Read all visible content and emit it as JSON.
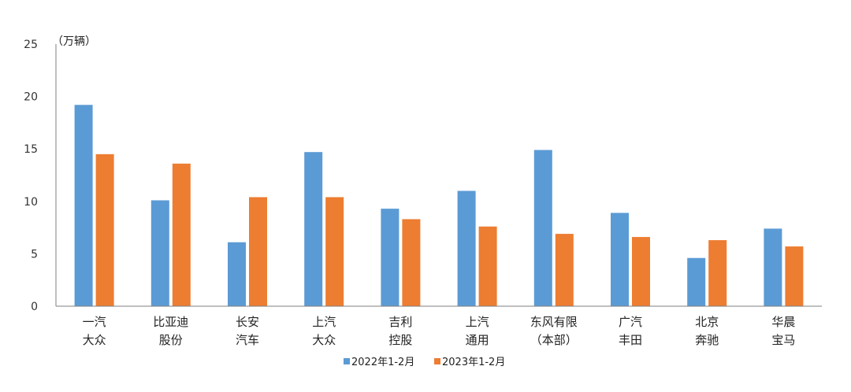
{
  "chart_data": {
    "type": "bar",
    "title": "",
    "unit_label": "（万辆）",
    "ylim": [
      0,
      25
    ],
    "yticks": [
      "0",
      "5",
      "10",
      "15",
      "20",
      "25"
    ],
    "grid": false,
    "legend_position": "bottom",
    "categories": [
      [
        "一汽",
        "大众"
      ],
      [
        "比亚迪",
        "股份"
      ],
      [
        "长安",
        "汽车"
      ],
      [
        "上汽",
        "大众"
      ],
      [
        "吉利",
        "控股"
      ],
      [
        "上汽",
        "通用"
      ],
      [
        "东风有限",
        "（本部）"
      ],
      [
        "广汽",
        "丰田"
      ],
      [
        "北京",
        "奔驰"
      ],
      [
        "华晨",
        "宝马"
      ]
    ],
    "series": [
      {
        "name": "2022年1-2月",
        "color": "#5b9bd5",
        "values": [
          19.2,
          10.1,
          6.1,
          14.7,
          9.3,
          11.0,
          14.9,
          8.9,
          4.6,
          7.4
        ]
      },
      {
        "name": "2023年1-2月",
        "color": "#ed7d31",
        "values": [
          14.5,
          13.6,
          10.4,
          10.4,
          8.3,
          7.6,
          6.9,
          6.6,
          6.3,
          5.7
        ]
      }
    ]
  }
}
